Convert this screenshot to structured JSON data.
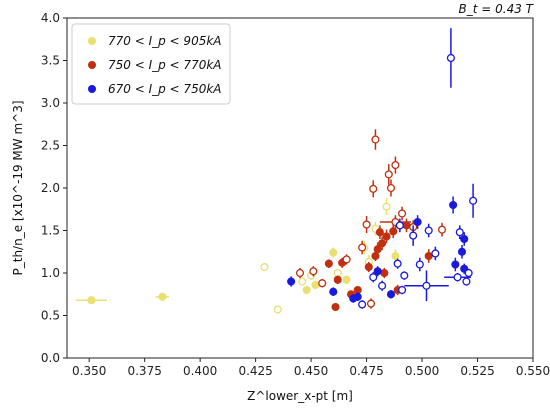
{
  "chart_data": {
    "type": "scatter",
    "annotation": "B_t = 0.43 T",
    "xlabel": "Z^lower_x-pt [m]",
    "ylabel": "P_th/n_e [x10^-19 MW m^3]",
    "xlim": [
      0.34,
      0.55
    ],
    "ylim": [
      0.0,
      4.0
    ],
    "xticks": [
      "0.350",
      "0.375",
      "0.400",
      "0.425",
      "0.450",
      "0.475",
      "0.500",
      "0.525",
      "0.550"
    ],
    "yticks": [
      "0.0",
      "0.5",
      "1.0",
      "1.5",
      "2.0",
      "2.5",
      "3.0",
      "3.5",
      "4.0"
    ],
    "legend_position": "top-left",
    "series": [
      {
        "name": "770 < I_p < 905kA",
        "color": "#e8e070",
        "points": [
          {
            "x": 0.351,
            "y": 0.68,
            "filled": true,
            "xerr": 0.007,
            "yerr": 0.03
          },
          {
            "x": 0.383,
            "y": 0.72,
            "filled": true,
            "xerr": 0.003,
            "yerr": 0.04
          },
          {
            "x": 0.429,
            "y": 1.07,
            "filled": false,
            "xerr": 0,
            "yerr": 0.04
          },
          {
            "x": 0.435,
            "y": 0.57,
            "filled": false,
            "xerr": 0,
            "yerr": 0.04
          },
          {
            "x": 0.446,
            "y": 0.9,
            "filled": false,
            "xerr": 0,
            "yerr": 0.05
          },
          {
            "x": 0.448,
            "y": 0.8,
            "filled": true,
            "xerr": 0,
            "yerr": 0.05
          },
          {
            "x": 0.45,
            "y": 0.97,
            "filled": false,
            "xerr": 0,
            "yerr": 0.05
          },
          {
            "x": 0.452,
            "y": 0.86,
            "filled": true,
            "xerr": 0,
            "yerr": 0.05
          },
          {
            "x": 0.46,
            "y": 1.24,
            "filled": true,
            "xerr": 0,
            "yerr": 0.06
          },
          {
            "x": 0.462,
            "y": 1.0,
            "filled": false,
            "xerr": 0,
            "yerr": 0.05
          },
          {
            "x": 0.466,
            "y": 0.92,
            "filled": true,
            "xerr": 0,
            "yerr": 0.05
          },
          {
            "x": 0.474,
            "y": 1.3,
            "filled": false,
            "xerr": 0,
            "yerr": 0.08
          },
          {
            "x": 0.476,
            "y": 1.13,
            "filled": false,
            "xerr": 0,
            "yerr": 0.08
          },
          {
            "x": 0.479,
            "y": 1.52,
            "filled": false,
            "xerr": 0,
            "yerr": 0.08
          },
          {
            "x": 0.484,
            "y": 1.78,
            "filled": false,
            "xerr": 0,
            "yerr": 0.1
          },
          {
            "x": 0.488,
            "y": 1.2,
            "filled": true,
            "xerr": 0,
            "yerr": 0.08
          }
        ]
      },
      {
        "name": "750 < I_p < 770kA",
        "color": "#c03010",
        "points": [
          {
            "x": 0.445,
            "y": 1.0,
            "filled": false,
            "xerr": 0,
            "yerr": 0.06
          },
          {
            "x": 0.451,
            "y": 1.02,
            "filled": false,
            "xerr": 0,
            "yerr": 0.06
          },
          {
            "x": 0.455,
            "y": 0.88,
            "filled": false,
            "xerr": 0,
            "yerr": 0.05
          },
          {
            "x": 0.458,
            "y": 1.11,
            "filled": true,
            "xerr": 0,
            "yerr": 0.05
          },
          {
            "x": 0.461,
            "y": 0.6,
            "filled": true,
            "xerr": 0,
            "yerr": 0.04
          },
          {
            "x": 0.462,
            "y": 0.92,
            "filled": true,
            "xerr": 0,
            "yerr": 0.05
          },
          {
            "x": 0.464,
            "y": 1.12,
            "filled": true,
            "xerr": 0,
            "yerr": 0.06
          },
          {
            "x": 0.466,
            "y": 1.16,
            "filled": false,
            "xerr": 0,
            "yerr": 0.06
          },
          {
            "x": 0.468,
            "y": 0.75,
            "filled": true,
            "xerr": 0,
            "yerr": 0.04
          },
          {
            "x": 0.471,
            "y": 0.8,
            "filled": true,
            "xerr": 0,
            "yerr": 0.04
          },
          {
            "x": 0.473,
            "y": 1.3,
            "filled": false,
            "xerr": 0,
            "yerr": 0.08
          },
          {
            "x": 0.475,
            "y": 1.57,
            "filled": false,
            "xerr": 0,
            "yerr": 0.1
          },
          {
            "x": 0.476,
            "y": 1.07,
            "filled": true,
            "xerr": 0,
            "yerr": 0.06
          },
          {
            "x": 0.477,
            "y": 0.64,
            "filled": false,
            "xerr": 0,
            "yerr": 0.06
          },
          {
            "x": 0.478,
            "y": 1.99,
            "filled": false,
            "xerr": 0,
            "yerr": 0.1
          },
          {
            "x": 0.479,
            "y": 2.57,
            "filled": false,
            "xerr": 0,
            "yerr": 0.12
          },
          {
            "x": 0.479,
            "y": 1.2,
            "filled": true,
            "xerr": 0,
            "yerr": 0.06
          },
          {
            "x": 0.48,
            "y": 1.28,
            "filled": true,
            "xerr": 0,
            "yerr": 0.08
          },
          {
            "x": 0.481,
            "y": 1.48,
            "filled": true,
            "xerr": 0,
            "yerr": 0.08
          },
          {
            "x": 0.482,
            "y": 1.35,
            "filled": true,
            "xerr": 0,
            "yerr": 0.08
          },
          {
            "x": 0.483,
            "y": 1.0,
            "filled": true,
            "xerr": 0,
            "yerr": 0.06
          },
          {
            "x": 0.484,
            "y": 1.43,
            "filled": true,
            "xerr": 0,
            "yerr": 0.08
          },
          {
            "x": 0.485,
            "y": 2.16,
            "filled": false,
            "xerr": 0,
            "yerr": 0.12
          },
          {
            "x": 0.486,
            "y": 2.0,
            "filled": false,
            "xerr": 0,
            "yerr": 0.1
          },
          {
            "x": 0.487,
            "y": 1.49,
            "filled": true,
            "xerr": 0,
            "yerr": 0.08
          },
          {
            "x": 0.488,
            "y": 2.27,
            "filled": false,
            "xerr": 0,
            "yerr": 0.1
          },
          {
            "x": 0.488,
            "y": 1.6,
            "filled": false,
            "xerr": 0.007,
            "yerr": 0.08
          },
          {
            "x": 0.489,
            "y": 0.8,
            "filled": true,
            "xerr": 0,
            "yerr": 0.06
          },
          {
            "x": 0.491,
            "y": 1.7,
            "filled": false,
            "xerr": 0,
            "yerr": 0.08
          },
          {
            "x": 0.493,
            "y": 1.56,
            "filled": true,
            "xerr": 0,
            "yerr": 0.08
          },
          {
            "x": 0.496,
            "y": 1.54,
            "filled": false,
            "xerr": 0,
            "yerr": 0.08
          },
          {
            "x": 0.503,
            "y": 1.2,
            "filled": true,
            "xerr": 0,
            "yerr": 0.08
          },
          {
            "x": 0.509,
            "y": 1.51,
            "filled": false,
            "xerr": 0,
            "yerr": 0.08
          }
        ]
      },
      {
        "name": "670 < I_p < 750kA",
        "color": "#1a1adc",
        "points": [
          {
            "x": 0.441,
            "y": 0.9,
            "filled": true,
            "xerr": 0,
            "yerr": 0.06
          },
          {
            "x": 0.46,
            "y": 0.78,
            "filled": true,
            "xerr": 0,
            "yerr": 0.05
          },
          {
            "x": 0.469,
            "y": 0.7,
            "filled": true,
            "xerr": 0,
            "yerr": 0.05
          },
          {
            "x": 0.471,
            "y": 0.72,
            "filled": true,
            "xerr": 0,
            "yerr": 0.05
          },
          {
            "x": 0.473,
            "y": 0.63,
            "filled": false,
            "xerr": 0,
            "yerr": 0.05
          },
          {
            "x": 0.478,
            "y": 0.95,
            "filled": false,
            "xerr": 0,
            "yerr": 0.06
          },
          {
            "x": 0.48,
            "y": 1.02,
            "filled": true,
            "xerr": 0,
            "yerr": 0.06
          },
          {
            "x": 0.482,
            "y": 0.85,
            "filled": false,
            "xerr": 0,
            "yerr": 0.06
          },
          {
            "x": 0.486,
            "y": 0.75,
            "filled": true,
            "xerr": 0,
            "yerr": 0.05
          },
          {
            "x": 0.489,
            "y": 1.11,
            "filled": false,
            "xerr": 0,
            "yerr": 0.06
          },
          {
            "x": 0.49,
            "y": 1.56,
            "filled": false,
            "xerr": 0,
            "yerr": 0.08
          },
          {
            "x": 0.491,
            "y": 0.8,
            "filled": false,
            "xerr": 0,
            "yerr": 0.05
          },
          {
            "x": 0.492,
            "y": 0.97,
            "filled": false,
            "xerr": 0,
            "yerr": 0.05
          },
          {
            "x": 0.496,
            "y": 1.44,
            "filled": false,
            "xerr": 0,
            "yerr": 0.12
          },
          {
            "x": 0.498,
            "y": 1.6,
            "filled": true,
            "xerr": 0,
            "yerr": 0.08
          },
          {
            "x": 0.499,
            "y": 1.1,
            "filled": false,
            "xerr": 0,
            "yerr": 0.08
          },
          {
            "x": 0.502,
            "y": 0.85,
            "filled": false,
            "xerr": 0.01,
            "yerr": 0.18
          },
          {
            "x": 0.503,
            "y": 1.5,
            "filled": false,
            "xerr": 0,
            "yerr": 0.08
          },
          {
            "x": 0.506,
            "y": 1.23,
            "filled": false,
            "xerr": 0,
            "yerr": 0.08
          },
          {
            "x": 0.513,
            "y": 3.53,
            "filled": false,
            "xerr": 0,
            "yerr": 0.35
          },
          {
            "x": 0.514,
            "y": 1.8,
            "filled": true,
            "xerr": 0,
            "yerr": 0.1
          },
          {
            "x": 0.515,
            "y": 1.1,
            "filled": true,
            "xerr": 0,
            "yerr": 0.08
          },
          {
            "x": 0.516,
            "y": 0.95,
            "filled": false,
            "xerr": 0.006,
            "yerr": 0.05
          },
          {
            "x": 0.517,
            "y": 1.48,
            "filled": false,
            "xerr": 0,
            "yerr": 0.08
          },
          {
            "x": 0.518,
            "y": 1.25,
            "filled": true,
            "xerr": 0,
            "yerr": 0.08
          },
          {
            "x": 0.519,
            "y": 1.4,
            "filled": true,
            "xerr": 0,
            "yerr": 0.08
          },
          {
            "x": 0.519,
            "y": 1.05,
            "filled": true,
            "xerr": 0,
            "yerr": 0.06
          },
          {
            "x": 0.52,
            "y": 0.9,
            "filled": false,
            "xerr": 0,
            "yerr": 0.05
          },
          {
            "x": 0.521,
            "y": 1.0,
            "filled": false,
            "xerr": 0,
            "yerr": 0.05
          },
          {
            "x": 0.523,
            "y": 1.85,
            "filled": false,
            "xerr": 0,
            "yerr": 0.2
          }
        ]
      }
    ]
  }
}
